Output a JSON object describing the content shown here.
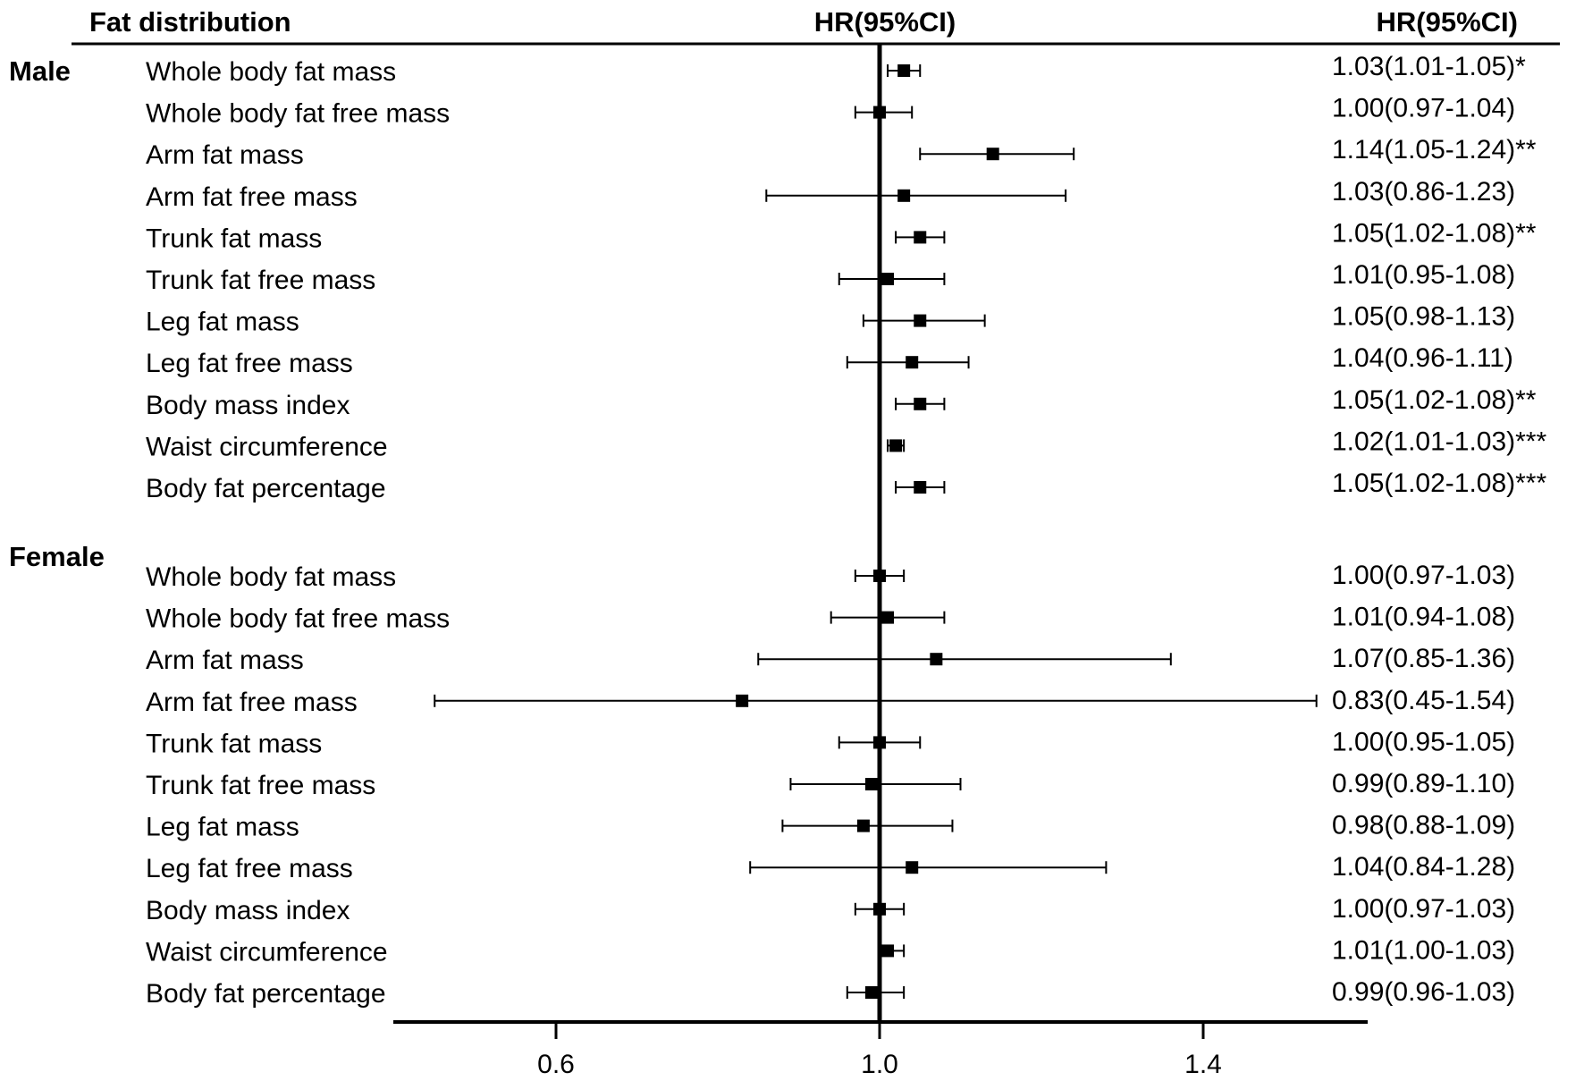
{
  "chart_data": {
    "type": "forest",
    "headers": {
      "label_column": "Fat distribution",
      "plot_column": "HR(95%CI)",
      "value_column": "HR(95%CI)"
    },
    "reference_line": 1.0,
    "xlim": [
      0.4,
      1.6
    ],
    "xticks": [
      "0.6",
      "1.0",
      "1.4"
    ],
    "xtick_values": [
      0.6,
      1.0,
      1.4
    ],
    "groups": [
      {
        "name": "Male",
        "rows": [
          {
            "label": "Whole body fat mass",
            "hr": 1.03,
            "lo": 1.01,
            "hi": 1.05,
            "text": "1.03(1.01-1.05)*"
          },
          {
            "label": "Whole body fat free mass",
            "hr": 1.0,
            "lo": 0.97,
            "hi": 1.04,
            "text": "1.00(0.97-1.04)"
          },
          {
            "label": "Arm fat mass",
            "hr": 1.14,
            "lo": 1.05,
            "hi": 1.24,
            "text": "1.14(1.05-1.24)**"
          },
          {
            "label": "Arm fat free mass",
            "hr": 1.03,
            "lo": 0.86,
            "hi": 1.23,
            "text": "1.03(0.86-1.23)"
          },
          {
            "label": "Trunk fat mass",
            "hr": 1.05,
            "lo": 1.02,
            "hi": 1.08,
            "text": "1.05(1.02-1.08)**"
          },
          {
            "label": "Trunk fat free mass",
            "hr": 1.01,
            "lo": 0.95,
            "hi": 1.08,
            "text": "1.01(0.95-1.08)"
          },
          {
            "label": "Leg fat mass",
            "hr": 1.05,
            "lo": 0.98,
            "hi": 1.13,
            "text": "1.05(0.98-1.13)"
          },
          {
            "label": "Leg fat free mass",
            "hr": 1.04,
            "lo": 0.96,
            "hi": 1.11,
            "text": "1.04(0.96-1.11)"
          },
          {
            "label": "Body mass index",
            "hr": 1.05,
            "lo": 1.02,
            "hi": 1.08,
            "text": "1.05(1.02-1.08)**"
          },
          {
            "label": "Waist circumference",
            "hr": 1.02,
            "lo": 1.01,
            "hi": 1.03,
            "text": "1.02(1.01-1.03)***"
          },
          {
            "label": "Body fat percentage",
            "hr": 1.05,
            "lo": 1.02,
            "hi": 1.08,
            "text": "1.05(1.02-1.08)***"
          }
        ]
      },
      {
        "name": "Female",
        "rows": [
          {
            "label": "Whole body fat mass",
            "hr": 1.0,
            "lo": 0.97,
            "hi": 1.03,
            "text": "1.00(0.97-1.03)"
          },
          {
            "label": "Whole body fat free mass",
            "hr": 1.01,
            "lo": 0.94,
            "hi": 1.08,
            "text": "1.01(0.94-1.08)"
          },
          {
            "label": "Arm fat mass",
            "hr": 1.07,
            "lo": 0.85,
            "hi": 1.36,
            "text": "1.07(0.85-1.36)"
          },
          {
            "label": "Arm fat free mass",
            "hr": 0.83,
            "lo": 0.45,
            "hi": 1.54,
            "text": "0.83(0.45-1.54)"
          },
          {
            "label": "Trunk fat mass",
            "hr": 1.0,
            "lo": 0.95,
            "hi": 1.05,
            "text": "1.00(0.95-1.05)"
          },
          {
            "label": "Trunk fat free mass",
            "hr": 0.99,
            "lo": 0.89,
            "hi": 1.1,
            "text": "0.99(0.89-1.10)"
          },
          {
            "label": "Leg fat mass",
            "hr": 0.98,
            "lo": 0.88,
            "hi": 1.09,
            "text": "0.98(0.88-1.09)"
          },
          {
            "label": "Leg fat free mass",
            "hr": 1.04,
            "lo": 0.84,
            "hi": 1.28,
            "text": "1.04(0.84-1.28)"
          },
          {
            "label": "Body mass index",
            "hr": 1.0,
            "lo": 0.97,
            "hi": 1.03,
            "text": "1.00(0.97-1.03)"
          },
          {
            "label": "Waist circumference",
            "hr": 1.01,
            "lo": 1.0,
            "hi": 1.03,
            "text": "1.01(1.00-1.03)"
          },
          {
            "label": "Body fat percentage",
            "hr": 0.99,
            "lo": 0.96,
            "hi": 1.03,
            "text": "0.99(0.96-1.03)"
          }
        ]
      }
    ]
  }
}
